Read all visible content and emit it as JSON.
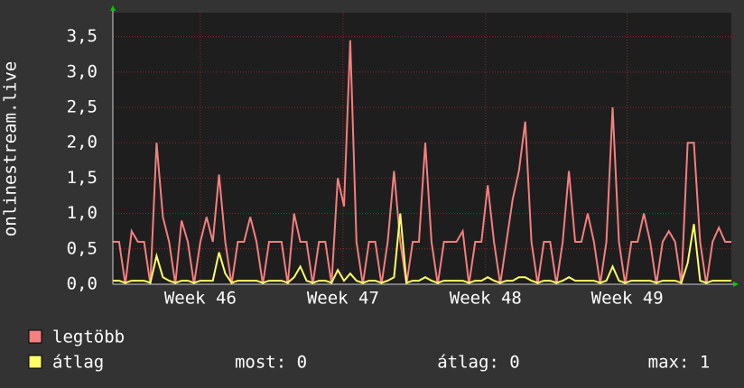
{
  "chart_data": {
    "type": "line",
    "ylabel": "onlinestream.live",
    "x": [
      0,
      0.3,
      0.6,
      0.9,
      1.2,
      1.5,
      1.8,
      2.1,
      2.4,
      2.7,
      3,
      3.3,
      3.6,
      3.9,
      4.2,
      4.5,
      4.8,
      5.1,
      5.4,
      5.7,
      6,
      6.3,
      6.6,
      6.9,
      7.2,
      7.5,
      7.8,
      8.1,
      8.4,
      8.7,
      9,
      9.3,
      9.6,
      9.9,
      10.2,
      10.5,
      10.8,
      11.1,
      11.4,
      11.7,
      12,
      12.3,
      12.6,
      12.9,
      13.2,
      13.5,
      13.8,
      14.1,
      14.4,
      14.7,
      15,
      15.3,
      15.6,
      15.9,
      16.2,
      16.5,
      16.8,
      17.1,
      17.4,
      17.7,
      18,
      18.3,
      18.6,
      18.9,
      19.2,
      19.5,
      19.8,
      20.1,
      20.4,
      20.7,
      21,
      21.3,
      21.6,
      21.9,
      22.2,
      22.5,
      22.8,
      23.1,
      23.4,
      23.7,
      24,
      24.3,
      24.6,
      24.9,
      25.2,
      25.5,
      25.8,
      26.1,
      26.4,
      26.7,
      27,
      27.3,
      27.6,
      27.9,
      28.2,
      28.5,
      28.8,
      29.1,
      29.4,
      29.7
    ],
    "series": [
      {
        "name": "legtöbb",
        "color": "#f47f7f",
        "values": [
          0.6,
          0.6,
          0,
          0.75,
          0.6,
          0.6,
          0,
          2.0,
          0.95,
          0.6,
          0,
          0.9,
          0.6,
          0,
          0.6,
          0.95,
          0.6,
          1.55,
          0.6,
          0,
          0.6,
          0.6,
          0.95,
          0.6,
          0,
          0.6,
          0.6,
          0.6,
          0,
          1.0,
          0.6,
          0.6,
          0,
          0.6,
          0.6,
          0,
          1.5,
          1.1,
          3.45,
          0.6,
          0,
          0.6,
          0.6,
          0,
          0.6,
          1.6,
          0.6,
          0,
          0.6,
          0.6,
          2.0,
          0.6,
          0,
          0.6,
          0.6,
          0.6,
          0.75,
          0,
          0.6,
          0.6,
          1.4,
          0.6,
          0,
          0.6,
          1.2,
          1.6,
          2.3,
          0.6,
          0,
          0.6,
          0.6,
          0,
          0.6,
          1.6,
          0.6,
          0.6,
          1.0,
          0.6,
          0,
          0.6,
          2.5,
          0.6,
          0,
          0.6,
          0.6,
          1.0,
          0.6,
          0,
          0.6,
          0.75,
          0.6,
          0,
          2.0,
          2.0,
          0.6,
          0,
          0.6,
          0.8,
          0.6,
          0.6
        ]
      },
      {
        "name": "átlag",
        "color": "#ffff66",
        "values": [
          0.05,
          0.05,
          0.02,
          0.05,
          0.05,
          0.05,
          0.02,
          0.4,
          0.1,
          0.05,
          0.02,
          0.05,
          0.05,
          0.02,
          0.05,
          0.05,
          0.05,
          0.45,
          0.15,
          0.02,
          0.05,
          0.05,
          0.05,
          0.05,
          0.02,
          0.05,
          0.05,
          0.05,
          0.02,
          0.1,
          0.25,
          0.05,
          0.02,
          0.05,
          0.05,
          0.02,
          0.2,
          0.05,
          0.15,
          0.05,
          0.02,
          0.05,
          0.05,
          0.02,
          0.05,
          0.1,
          1.0,
          0.02,
          0.05,
          0.05,
          0.1,
          0.05,
          0.02,
          0.05,
          0.05,
          0.05,
          0.05,
          0.02,
          0.05,
          0.05,
          0.1,
          0.05,
          0.02,
          0.05,
          0.05,
          0.1,
          0.1,
          0.05,
          0.02,
          0.05,
          0.05,
          0.02,
          0.05,
          0.1,
          0.05,
          0.05,
          0.05,
          0.05,
          0.02,
          0.05,
          0.25,
          0.05,
          0.02,
          0.05,
          0.05,
          0.05,
          0.05,
          0.02,
          0.05,
          0.05,
          0.05,
          0.02,
          0.3,
          0.85,
          0.05,
          0.02,
          0.05,
          0.05,
          0.05,
          0.05
        ]
      }
    ],
    "xlim": [
      0,
      29.7
    ],
    "xticks": [
      {
        "value": 4.2,
        "label": "Week 46"
      },
      {
        "value": 11.05,
        "label": "Week 47"
      },
      {
        "value": 17.9,
        "label": "Week 48"
      },
      {
        "value": 24.7,
        "label": "Week 49"
      }
    ],
    "ylim": [
      0,
      3.84
    ],
    "yticks": [
      {
        "value": 0,
        "label": "0,0"
      },
      {
        "value": 0.5,
        "label": "0,5"
      },
      {
        "value": 1,
        "label": "1,0"
      },
      {
        "value": 1.5,
        "label": "1,5"
      },
      {
        "value": 2,
        "label": "2,0"
      },
      {
        "value": 2.5,
        "label": "2,5"
      },
      {
        "value": 3,
        "label": "3,0"
      },
      {
        "value": 3.5,
        "label": "3,5"
      }
    ],
    "grid": true,
    "stats": [
      "most: 0",
      "átlag: 0",
      "max: 1"
    ]
  }
}
